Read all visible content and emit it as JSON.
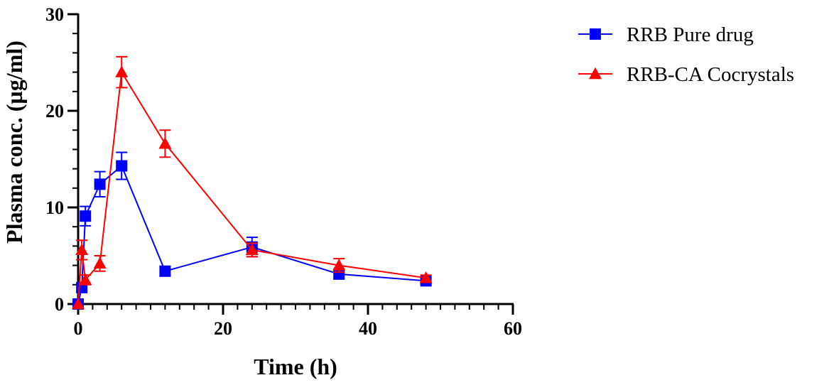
{
  "chart_data": {
    "type": "line",
    "title": "",
    "xlabel": "Time (h)",
    "ylabel": "Plasma conc. (µg/ml)",
    "xlim": [
      0,
      60
    ],
    "ylim": [
      0,
      30
    ],
    "x_ticks": [
      0,
      20,
      40,
      60
    ],
    "y_ticks": [
      0,
      10,
      20,
      30
    ],
    "x_minor_step": 2,
    "y_minor_step": 2,
    "grid": false,
    "legend_position": "right",
    "series": [
      {
        "name": "RRB Pure drug",
        "color": "#0000ff",
        "marker": "square",
        "x": [
          0,
          0.5,
          1,
          3,
          6,
          12,
          24,
          36,
          48
        ],
        "y": [
          0,
          1.7,
          9.1,
          12.4,
          14.3,
          3.4,
          5.9,
          3.1,
          2.4
        ],
        "error": [
          0,
          0.4,
          1.0,
          1.3,
          1.4,
          0.5,
          1.0,
          0.5,
          0.3
        ]
      },
      {
        "name": "RRB-CA Cocrystals",
        "color": "#ff0000",
        "marker": "triangle",
        "x": [
          0,
          0.5,
          1,
          3,
          6,
          12,
          24,
          36,
          48
        ],
        "y": [
          0,
          5.6,
          2.5,
          4.2,
          24.0,
          16.6,
          5.6,
          4.0,
          2.7
        ],
        "error": [
          0,
          1.0,
          0.5,
          0.8,
          1.6,
          1.4,
          0.7,
          0.7,
          0.3
        ]
      }
    ]
  }
}
